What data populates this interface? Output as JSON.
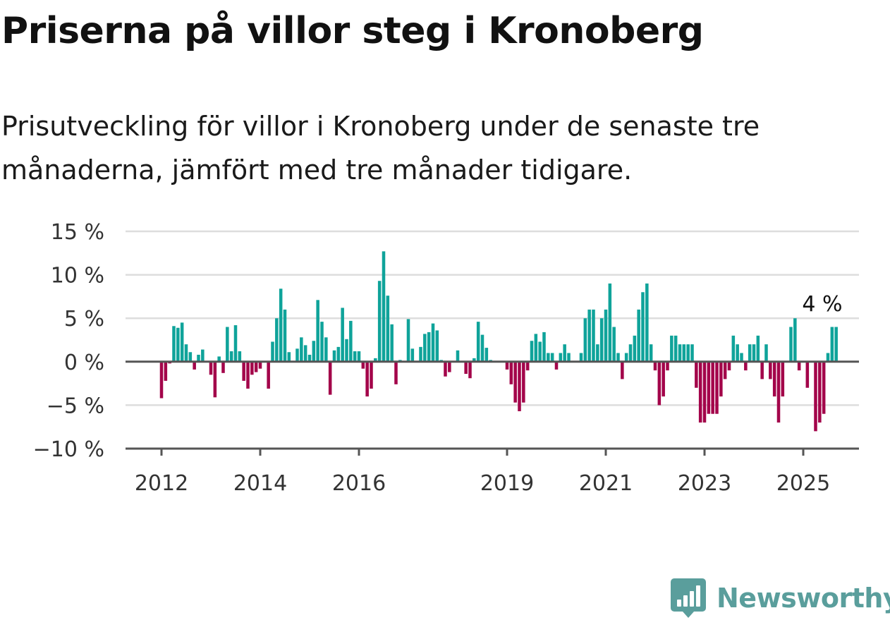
{
  "header": {
    "title": "Priserna på villor steg i Kronoberg",
    "subtitle": "Prisutveckling för villor i Kronoberg under de senaste tre månaderna, jämfört med tre månader tidigare."
  },
  "brand": {
    "name": "Newsworthy",
    "icon": "bar-chart-badge-icon",
    "color": "#5a9e9c"
  },
  "chart_data": {
    "type": "bar",
    "title": "",
    "xlabel": "",
    "ylabel": "",
    "ylim": [
      -10,
      15
    ],
    "y_ticks": [
      15,
      10,
      5,
      0,
      -5,
      -10
    ],
    "y_tick_labels": [
      "15 %",
      "10 %",
      "5 %",
      "0 %",
      "−5 %",
      "−10 %"
    ],
    "x_ticks": [
      2012,
      2014,
      2016,
      2019,
      2021,
      2023,
      2025
    ],
    "x_tick_labels": [
      "2012",
      "2014",
      "2016",
      "2019",
      "2021",
      "2023",
      "2025"
    ],
    "x_start": "2012-01",
    "grid": true,
    "colors": {
      "positive": "#0fa39a",
      "negative": "#a3044a",
      "grid": "#dddddd",
      "axis": "#555555"
    },
    "annotation": {
      "text": "4 %",
      "x": "2025-06",
      "y": 4
    },
    "values": [
      -4.2,
      -2.2,
      -0.2,
      4.1,
      3.9,
      4.5,
      2.0,
      1.1,
      -0.9,
      0.8,
      1.4,
      0.1,
      -1.5,
      -4.1,
      0.6,
      -1.3,
      4.0,
      1.2,
      4.2,
      1.2,
      -2.2,
      -3.1,
      -1.5,
      -1.2,
      -0.8,
      0.0,
      -3.1,
      2.3,
      5.0,
      8.4,
      6.0,
      1.1,
      0.0,
      1.5,
      2.8,
      1.9,
      0.8,
      2.4,
      7.1,
      4.6,
      2.8,
      -3.8,
      1.3,
      1.7,
      6.2,
      2.6,
      4.7,
      1.2,
      1.2,
      -0.8,
      -4.0,
      -3.1,
      0.4,
      9.3,
      12.7,
      7.6,
      4.3,
      -2.6,
      0.2,
      0.1,
      4.9,
      1.5,
      0.1,
      1.7,
      3.2,
      3.4,
      4.4,
      3.6,
      0.2,
      -1.7,
      -1.2,
      0.1,
      1.3,
      0.0,
      -1.4,
      -1.9,
      0.4,
      4.6,
      3.1,
      1.6,
      0.2,
      0.0,
      0.0,
      0.0,
      -0.9,
      -2.6,
      -4.7,
      -5.7,
      -4.7,
      -1.0,
      2.4,
      3.2,
      2.3,
      3.4,
      1.0,
      1.0,
      -0.9,
      1.0,
      2.0,
      1.0,
      0.0,
      0.0,
      1.0,
      5.0,
      6.0,
      6.0,
      2.0,
      5.0,
      6.0,
      9.0,
      4.0,
      1.0,
      -2.0,
      1.0,
      2.0,
      3.0,
      6.0,
      8.0,
      9.0,
      2.0,
      -1.0,
      -5.0,
      -4.0,
      -1.0,
      3.0,
      3.0,
      2.0,
      2.0,
      2.0,
      2.0,
      -3.0,
      -7.0,
      -7.0,
      -6.0,
      -6.0,
      -6.0,
      -4.0,
      -2.0,
      -1.0,
      3.0,
      2.0,
      1.0,
      -1.0,
      2.0,
      2.0,
      3.0,
      -2.0,
      2.0,
      -2.0,
      -4.0,
      -7.0,
      -4.0,
      0.0,
      4.0,
      5.0,
      -1.0,
      0.0,
      -3.0,
      0.0,
      -8.0,
      -7.0,
      -6.0,
      1.0,
      4.0,
      4.0
    ]
  }
}
